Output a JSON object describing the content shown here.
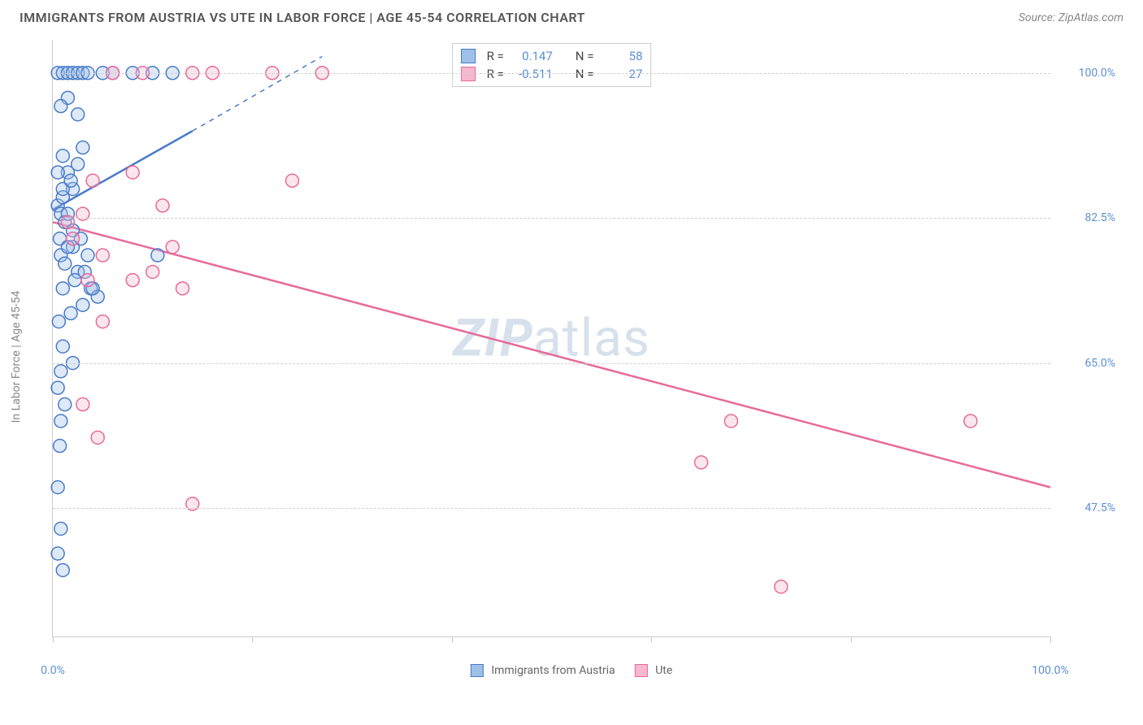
{
  "header": {
    "title": "IMMIGRANTS FROM AUSTRIA VS UTE IN LABOR FORCE | AGE 45-54 CORRELATION CHART",
    "source": "Source: ZipAtlas.com"
  },
  "y_axis_label": "In Labor Force | Age 45-54",
  "watermark": {
    "part1": "ZIP",
    "part2": "atlas"
  },
  "chart": {
    "type": "scatter",
    "background_color": "#ffffff",
    "grid_color": "#d0d0d0",
    "axis_color": "#cccccc",
    "label_color": "#5b8fd6",
    "xlim": [
      0,
      100
    ],
    "ylim": [
      32,
      104
    ],
    "x_ticks_major": [
      0,
      100
    ],
    "x_ticks_minor": [
      20,
      40,
      60,
      80
    ],
    "x_tick_labels": {
      "0": "0.0%",
      "100": "100.0%"
    },
    "y_gridlines": [
      47.5,
      65.0,
      82.5,
      100.0
    ],
    "y_tick_labels": {
      "47.5": "47.5%",
      "65.0": "65.0%",
      "82.5": "82.5%",
      "100.0": "100.0%"
    },
    "marker_radius": 8,
    "marker_stroke_width": 1.5,
    "marker_fill_opacity": 0.35,
    "trend_line_width": 2.5,
    "trend_dash_width": 1.5
  },
  "series": [
    {
      "name": "Immigrants from Austria",
      "color_stroke": "#4a7bc8",
      "color_fill": "#9fc0e8",
      "R": "0.147",
      "N": "58",
      "points": [
        [
          0.5,
          84
        ],
        [
          0.8,
          83
        ],
        [
          1.0,
          85
        ],
        [
          1.2,
          82
        ],
        [
          0.7,
          80
        ],
        [
          1.5,
          83
        ],
        [
          1.0,
          90
        ],
        [
          1.5,
          88
        ],
        [
          2.0,
          86
        ],
        [
          2.5,
          89
        ],
        [
          3.0,
          91
        ],
        [
          0.8,
          78
        ],
        [
          1.2,
          77
        ],
        [
          2.0,
          79
        ],
        [
          2.5,
          76
        ],
        [
          3.5,
          78
        ],
        [
          1.0,
          74
        ],
        [
          2.2,
          75
        ],
        [
          3.8,
          74
        ],
        [
          4.5,
          73
        ],
        [
          0.6,
          70
        ],
        [
          1.8,
          71
        ],
        [
          3.0,
          72
        ],
        [
          1.0,
          67
        ],
        [
          2.0,
          65
        ],
        [
          0.8,
          64
        ],
        [
          0.5,
          100
        ],
        [
          1.0,
          100
        ],
        [
          1.5,
          100
        ],
        [
          2.0,
          100
        ],
        [
          2.5,
          100
        ],
        [
          3.0,
          100
        ],
        [
          3.5,
          100
        ],
        [
          5.0,
          100
        ],
        [
          6.0,
          100
        ],
        [
          8.0,
          100
        ],
        [
          10.0,
          100
        ],
        [
          12.0,
          100
        ],
        [
          1.5,
          97
        ],
        [
          0.8,
          96
        ],
        [
          2.5,
          95
        ],
        [
          0.5,
          88
        ],
        [
          1.0,
          86
        ],
        [
          1.8,
          87
        ],
        [
          2.0,
          81
        ],
        [
          2.8,
          80
        ],
        [
          1.5,
          79
        ],
        [
          3.2,
          76
        ],
        [
          4.0,
          74
        ],
        [
          10.5,
          78
        ],
        [
          0.5,
          62
        ],
        [
          1.2,
          60
        ],
        [
          0.8,
          58
        ],
        [
          0.7,
          55
        ],
        [
          0.5,
          50
        ],
        [
          0.8,
          45
        ],
        [
          0.5,
          42
        ],
        [
          1.0,
          40
        ]
      ],
      "trend": {
        "x1": 0,
        "y1": 83.5,
        "x2": 14,
        "y2": 93,
        "x2_dash": 27,
        "y2_dash": 102
      }
    },
    {
      "name": "Ute",
      "color_stroke": "#e86a9a",
      "color_fill": "#f5b8cf",
      "R": "-0.511",
      "N": "27",
      "points": [
        [
          6.0,
          100
        ],
        [
          9.0,
          100
        ],
        [
          14.0,
          100
        ],
        [
          16.0,
          100
        ],
        [
          22.0,
          100
        ],
        [
          27.0,
          100
        ],
        [
          4.0,
          87
        ],
        [
          8.0,
          88
        ],
        [
          24.0,
          87
        ],
        [
          1.5,
          82
        ],
        [
          3.0,
          83
        ],
        [
          11.0,
          84
        ],
        [
          5.0,
          78
        ],
        [
          12.0,
          79
        ],
        [
          3.5,
          75
        ],
        [
          8.0,
          75
        ],
        [
          13.0,
          74
        ],
        [
          5.0,
          70
        ],
        [
          3.0,
          60
        ],
        [
          4.5,
          56
        ],
        [
          14.0,
          48
        ],
        [
          68.0,
          58
        ],
        [
          65.0,
          53
        ],
        [
          92.0,
          58
        ],
        [
          73.0,
          38
        ],
        [
          2.0,
          80
        ],
        [
          10.0,
          76
        ]
      ],
      "trend": {
        "x1": 0,
        "y1": 82,
        "x2": 100,
        "y2": 50
      }
    }
  ],
  "bottom_legend": {
    "item1": "Immigrants from Austria",
    "item2": "Ute"
  },
  "stats_legend": {
    "r_label": "R  =",
    "n_label": "N  ="
  }
}
